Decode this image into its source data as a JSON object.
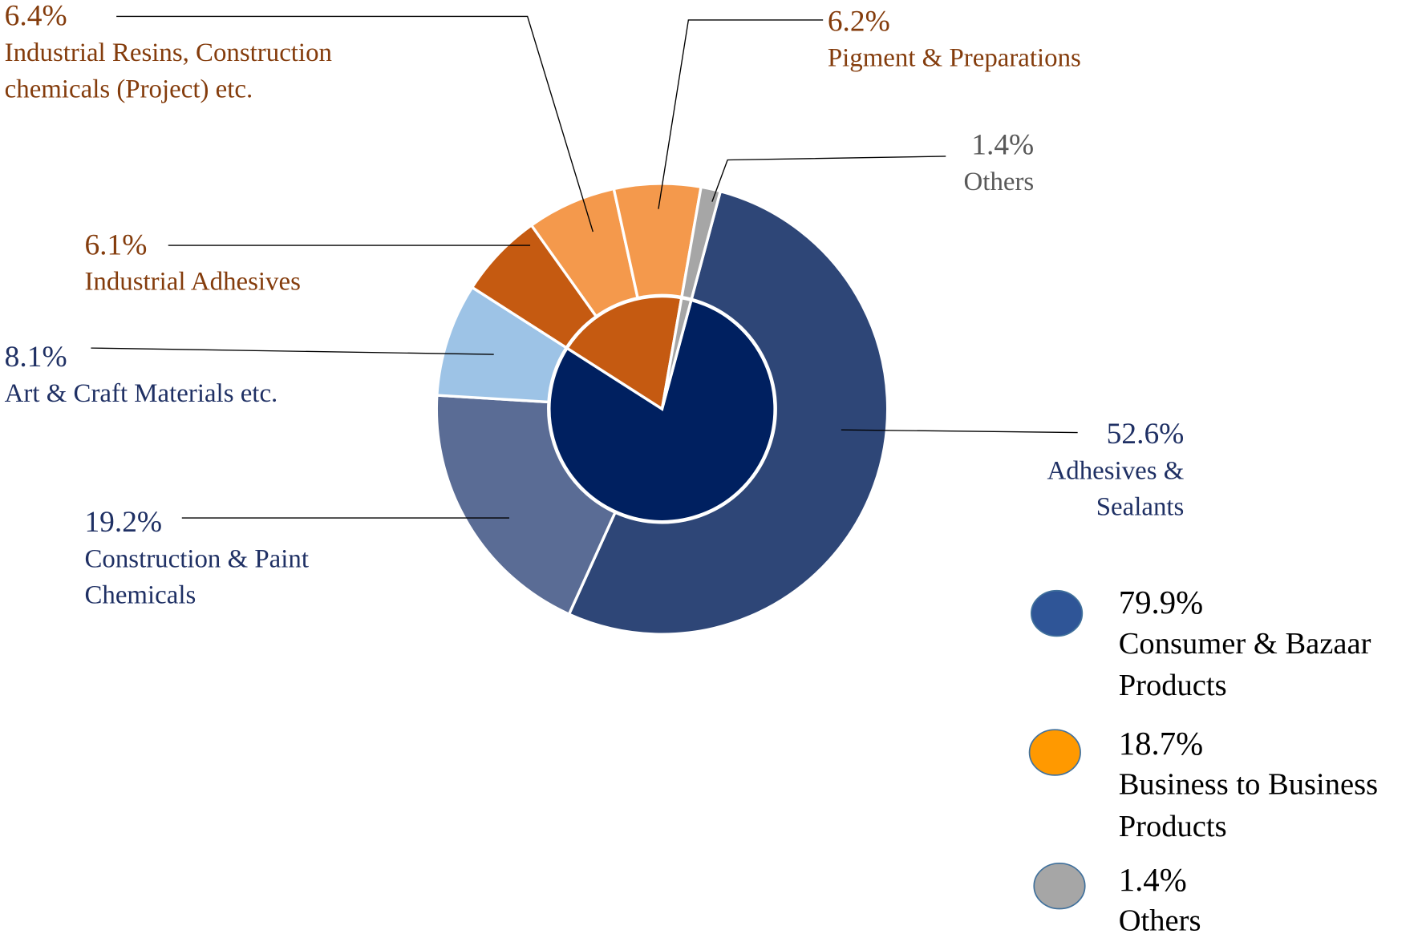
{
  "chart_data": {
    "type": "donut",
    "rings": [
      {
        "categories": [
          "Consumer & Bazaar Products",
          "Business to Business Products",
          "Others"
        ],
        "values": [
          79.9,
          18.7,
          1.4
        ],
        "value_labels": [
          "79.9%",
          "18.7%",
          "1.4%"
        ],
        "colors": [
          "#002060",
          "#c55a11",
          "#a6a6a6"
        ],
        "legend_colors": [
          "#2f5597",
          "#ff9900",
          "#a6a6a6"
        ]
      },
      {
        "categories": [
          "Adhesives & Sealants",
          "Construction & Paint Chemicals",
          "Art & Craft Materials etc.",
          "Industrial Adhesives",
          "Industrial Resins, Construction chemicals (Project) etc.",
          "Pigment & Preparations",
          "Others"
        ],
        "values": [
          52.6,
          19.2,
          8.1,
          6.1,
          6.4,
          6.2,
          1.4
        ],
        "value_labels": [
          "52.6%",
          "19.2%",
          "8.1%",
          "6.1%",
          "6.4%",
          "6.2%",
          "1.4%"
        ],
        "colors": [
          "#2e4677",
          "#5a6c95",
          "#9dc3e6",
          "#c55a11",
          "#f4994c",
          "#f4994c",
          "#a6a6a6"
        ],
        "label_colors": [
          "#1f3064",
          "#1f3064",
          "#1f3064",
          "#843c0c",
          "#843c0c",
          "#843c0c",
          "#595959"
        ]
      }
    ],
    "legend": true
  }
}
